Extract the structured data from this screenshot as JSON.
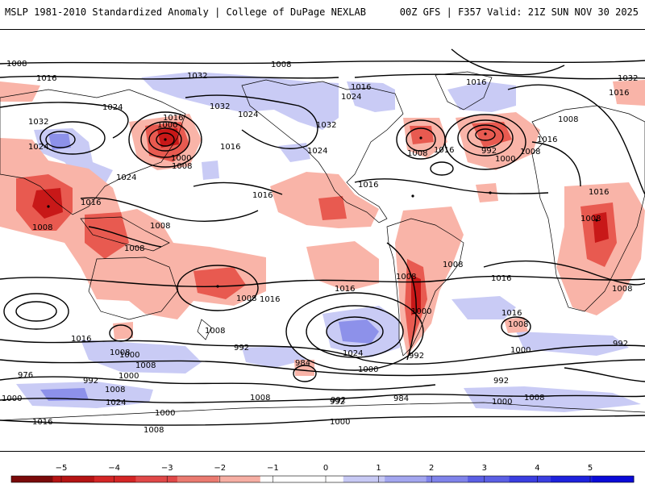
{
  "header": {
    "left_title": "MSLP 1981-2010 Standardized Anomaly | College of DuPage NEXLAB",
    "right_title": "00Z GFS | F357 Valid: 21Z SUN NOV 30 2025"
  },
  "map": {
    "isobar_labels": [
      "1008",
      "1008",
      "1016",
      "1032",
      "1016",
      "1024",
      "1016",
      "1024",
      "1032",
      "1024",
      "1032",
      "1016",
      "1024",
      "1008",
      "1000",
      "1008",
      "1016",
      "1016",
      "1024",
      "1032",
      "1024",
      "1016",
      "1008",
      "1016",
      "1016",
      "1032",
      "1008",
      "1000",
      "1016",
      "1016",
      "1008",
      "1016",
      "1008",
      "992",
      "1000",
      "1008",
      "1016",
      "1008",
      "1008",
      "1008",
      "1008",
      "1016",
      "1008",
      "1016",
      "1000",
      "1008",
      "1016",
      "1008",
      "992",
      "984",
      "1024",
      "1000",
      "992",
      "992",
      "1000",
      "1016",
      "1008",
      "1000",
      "992",
      "992",
      "1008",
      "976",
      "992",
      "1000",
      "1000",
      "1008",
      "1024",
      "984",
      "992",
      "1000",
      "1000",
      "1016",
      "1008",
      "1008",
      "1000",
      "1008"
    ],
    "colors": {
      "negative_strong": "#d42020",
      "negative_mid": "#e85a50",
      "negative_weak": "#f9b4a8",
      "positive_weak": "#c9cbf5",
      "positive_mid": "#9fa2ee",
      "positive_strong": "#6b6fe6",
      "isobar": "#000000",
      "coastline": "#000000"
    }
  },
  "colorbar": {
    "ticks": [
      "−5",
      "−4",
      "−3",
      "−2",
      "−1",
      "0",
      "1",
      "2",
      "3",
      "4",
      "5"
    ],
    "colors": [
      "#7a0a0a",
      "#b51414",
      "#d42525",
      "#e04848",
      "#ea7a70",
      "#f6aea3",
      "#ffffff",
      "#ffffff",
      "#c7c9f4",
      "#a3a6ef",
      "#7f83ea",
      "#5b5fe4",
      "#3a3ee0",
      "#1e22dd",
      "#0a0ad8"
    ]
  }
}
